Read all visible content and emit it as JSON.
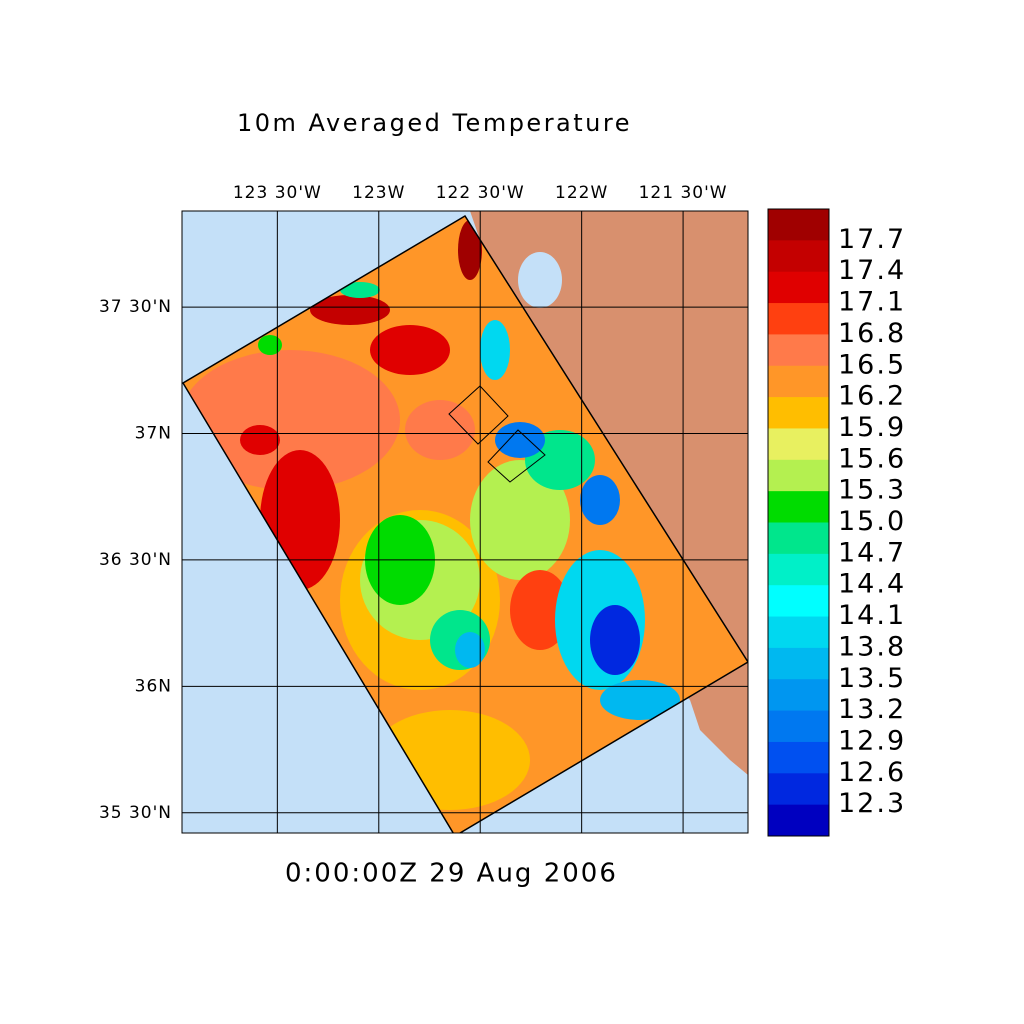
{
  "title": "10m Averaged Temperature",
  "time_label": "0:00:00Z  29 Aug 2006",
  "lon_range": [
    -123.97,
    -121.18
  ],
  "lat_range": [
    35.42,
    37.88
  ],
  "lon_ticks": [
    {
      "value": -123.5,
      "label": "123 30'W"
    },
    {
      "value": -123,
      "label": "123W"
    },
    {
      "value": -122.5,
      "label": "122 30'W"
    },
    {
      "value": -122,
      "label": "122W"
    },
    {
      "value": -121.5,
      "label": "121 30'W"
    }
  ],
  "lat_ticks": [
    {
      "value": 37.5,
      "label": "37 30'N"
    },
    {
      "value": 37,
      "label": "37N"
    },
    {
      "value": 36.5,
      "label": "36 30'N"
    },
    {
      "value": 36,
      "label": "36N"
    },
    {
      "value": 35.5,
      "label": "35 30'N"
    }
  ],
  "grid": true,
  "colorbar": {
    "clim": [
      12.0,
      18.0
    ],
    "ticks": [
      17.7,
      17.4,
      17.1,
      16.8,
      16.5,
      16.2,
      15.9,
      15.6,
      15.3,
      {
        "value": 15,
        "label": "15.0"
      },
      14.7,
      14.4,
      14.1,
      13.8,
      13.5,
      13.2,
      12.9,
      12.6,
      12.3
    ],
    "colors": [
      "#a00000",
      "#c40000",
      "#e00000",
      "#ff4010",
      "#ff7a4a",
      "#ff9628",
      "#ffbe00",
      "#e8f060",
      "#b4f050",
      "#00dc00",
      "#00e68c",
      "#00f0c8",
      "#00ffff",
      "#00d8f0",
      "#00b8f0",
      "#0096f0",
      "#0078f0",
      "#0050f0",
      "#0028e0",
      "#0000c0"
    ]
  }
}
